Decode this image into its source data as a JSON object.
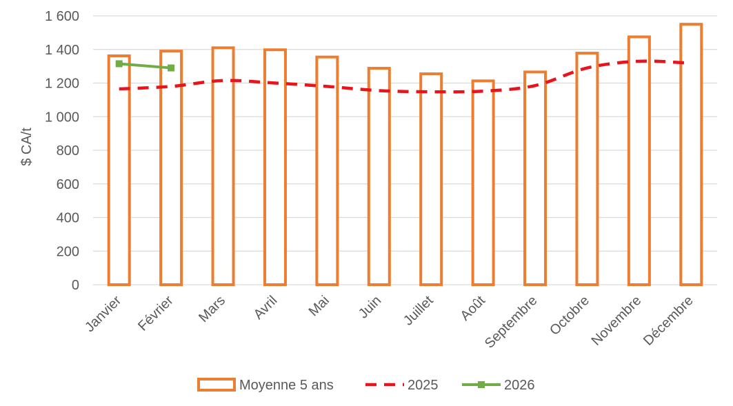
{
  "chart_data": {
    "type": "bar",
    "title": "",
    "xlabel": "",
    "ylabel": "$ CA/t",
    "ylim": [
      0,
      1600
    ],
    "yticks": [
      0,
      200,
      400,
      600,
      800,
      1000,
      1200,
      1400,
      1600
    ],
    "ytick_labels": [
      "0",
      "200",
      "400",
      "600",
      "800",
      "1 000",
      "1 200",
      "1 400",
      "1 600"
    ],
    "grid": "horizontal",
    "legend": "bottom",
    "categories": [
      "Janvier",
      "Février",
      "Mars",
      "Avril",
      "Mai",
      "Juin",
      "Juillet",
      "Août",
      "Septembre",
      "Octobre",
      "Novembre",
      "Décembre"
    ],
    "series": [
      {
        "name": "Moyenne 5 ans",
        "kind": "bar",
        "style": "outline",
        "color": "#ED7D31",
        "values": [
          1362,
          1390,
          1410,
          1398,
          1355,
          1288,
          1255,
          1213,
          1266,
          1378,
          1475,
          1550
        ]
      },
      {
        "name": "2025",
        "kind": "line",
        "style": "dashed",
        "color": "#E8141C",
        "values": [
          1165,
          1180,
          1215,
          1200,
          1180,
          1155,
          1148,
          1152,
          1185,
          1290,
          1330,
          1318
        ]
      },
      {
        "name": "2026",
        "kind": "line",
        "style": "solid-markers",
        "color": "#70AD47",
        "values": [
          1315,
          1290,
          null,
          null,
          null,
          null,
          null,
          null,
          null,
          null,
          null,
          null
        ]
      }
    ]
  }
}
